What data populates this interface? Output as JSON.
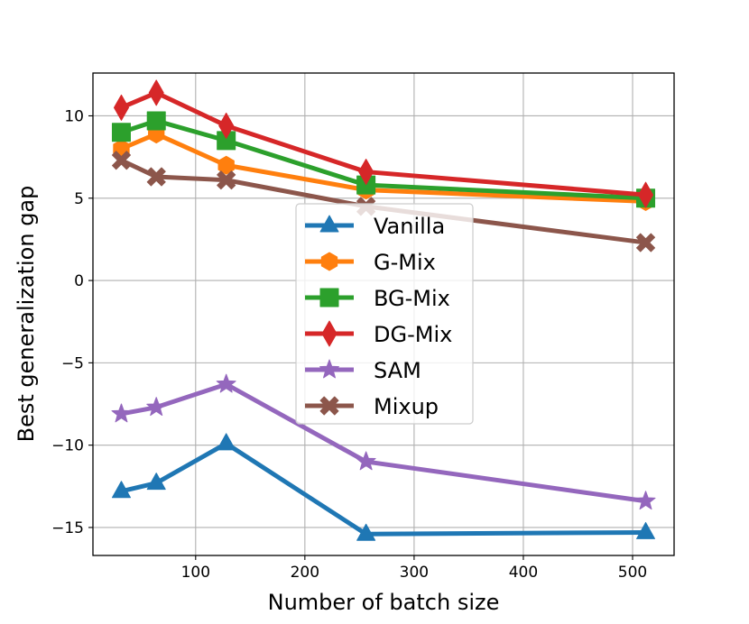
{
  "chart_data": {
    "type": "line",
    "title": "",
    "xlabel": "Number of batch size",
    "ylabel": "Best generalization gap",
    "x": [
      32,
      64,
      128,
      256,
      512
    ],
    "xlim": [
      6,
      538
    ],
    "ylim": [
      -16.7,
      12.6
    ],
    "xticks": [
      100,
      200,
      300,
      400,
      500
    ],
    "yticks": [
      -15,
      -10,
      -5,
      0,
      5,
      10
    ],
    "xtick_labels": [
      "100",
      "200",
      "300",
      "400",
      "500"
    ],
    "ytick_labels": [
      "−15",
      "−10",
      "−5",
      "0",
      "5",
      "10"
    ],
    "grid": true,
    "legend_position": "center",
    "series": [
      {
        "name": "Vanilla",
        "color": "#1f77b4",
        "marker": "triangle",
        "values": [
          -12.8,
          -12.3,
          -9.9,
          -15.4,
          -15.3
        ]
      },
      {
        "name": "G-Mix",
        "color": "#ff7f0e",
        "marker": "hexagon",
        "values": [
          8.0,
          8.9,
          7.0,
          5.5,
          4.8
        ]
      },
      {
        "name": "BG-Mix",
        "color": "#2ca02c",
        "marker": "square",
        "values": [
          9.0,
          9.7,
          8.5,
          5.8,
          5.0
        ]
      },
      {
        "name": "DG-Mix",
        "color": "#d62728",
        "marker": "diamond",
        "values": [
          10.5,
          11.4,
          9.4,
          6.6,
          5.2
        ]
      },
      {
        "name": "SAM",
        "color": "#9467bd",
        "marker": "star",
        "values": [
          -8.1,
          -7.7,
          -6.3,
          -11.0,
          -13.4
        ]
      },
      {
        "name": "Mixup",
        "color": "#8c564b",
        "marker": "x",
        "values": [
          7.3,
          6.3,
          6.1,
          4.5,
          2.3
        ]
      }
    ]
  }
}
